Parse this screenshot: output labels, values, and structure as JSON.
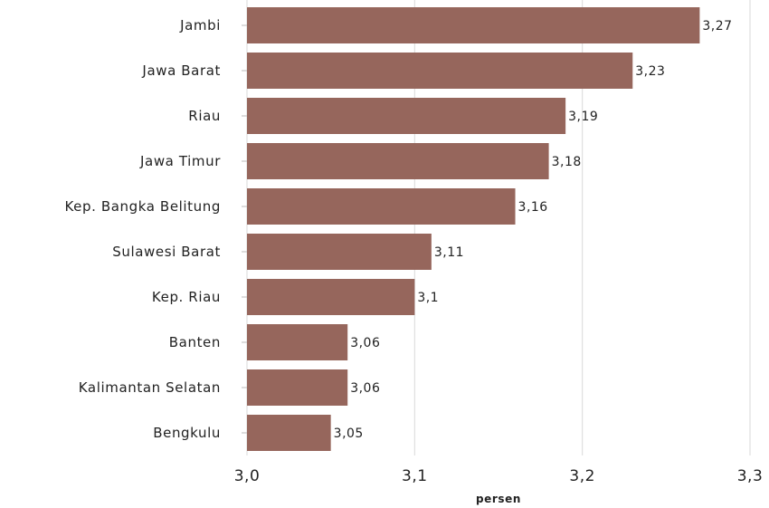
{
  "chart_data": {
    "type": "bar",
    "orientation": "horizontal",
    "categories": [
      "Jambi",
      "Jawa Barat",
      "Riau",
      "Jawa Timur",
      "Kep. Bangka Belitung",
      "Sulawesi Barat",
      "Kep. Riau",
      "Banten",
      "Kalimantan Selatan",
      "Bengkulu"
    ],
    "values": [
      3.27,
      3.23,
      3.19,
      3.18,
      3.16,
      3.11,
      3.1,
      3.06,
      3.06,
      3.05
    ],
    "value_labels": [
      "3,27",
      "3,23",
      "3,19",
      "3,18",
      "3,16",
      "3,11",
      "3,1",
      "3,06",
      "3,06",
      "3,05"
    ],
    "xlim": [
      3.0,
      3.3
    ],
    "x_ticks": [
      3.0,
      3.1,
      3.2,
      3.3
    ],
    "x_tick_labels": [
      "3,0",
      "3,1",
      "3,2",
      "3,3"
    ],
    "xlabel": "persen",
    "ylabel": "",
    "title": "",
    "grid": "vertical",
    "colors": {
      "bar": "#96665c"
    }
  }
}
